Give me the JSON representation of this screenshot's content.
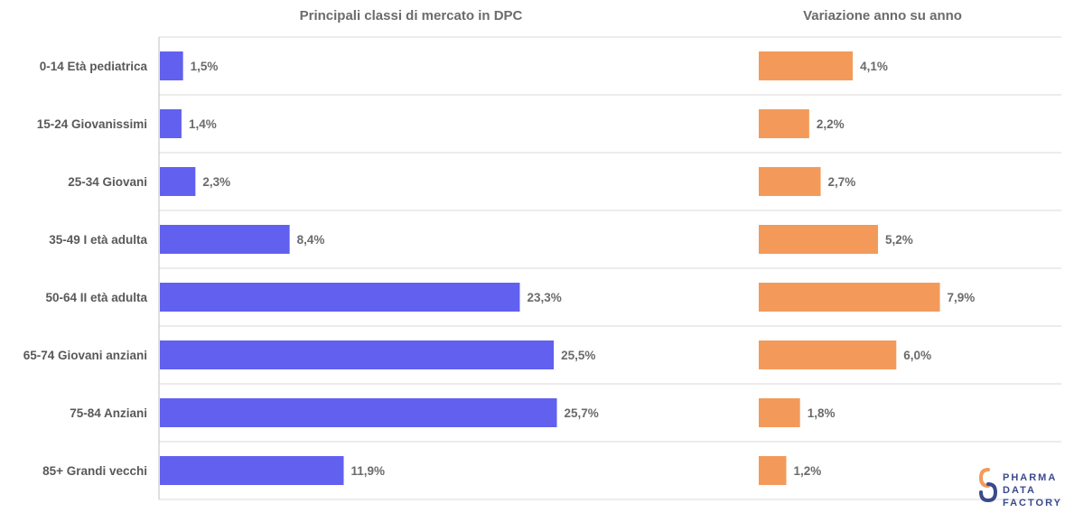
{
  "chart_data": [
    {
      "type": "bar",
      "orientation": "horizontal",
      "title": "Principali classi di mercato in DPC",
      "categories": [
        "0-14 Età pediatrica",
        "15-24 Giovanissimi",
        "25-34 Giovani",
        "35-49 I età adulta",
        "50-64 II età adulta",
        "65-74 Giovani anziani",
        "75-84 Anziani",
        "85+ Grandi vecchi"
      ],
      "values": [
        1.5,
        1.4,
        2.3,
        8.4,
        23.3,
        25.5,
        25.7,
        11.9
      ],
      "labels": [
        "1,5%",
        "1,4%",
        "2,3%",
        "8,4%",
        "23,3%",
        "25,5%",
        "25,7%",
        "11,9%"
      ],
      "xlim": [
        0,
        34.5
      ],
      "color": "#6160ef",
      "grid": true
    },
    {
      "type": "bar",
      "orientation": "horizontal",
      "title": "Variazione anno su anno",
      "categories": [
        "0-14 Età pediatrica",
        "15-24 Giovanissimi",
        "25-34 Giovani",
        "35-49 I età adulta",
        "50-64 II età adulta",
        "65-74 Giovani anziani",
        "75-84 Anziani",
        "85+ Grandi vecchi"
      ],
      "values": [
        4.1,
        2.2,
        2.7,
        5.2,
        7.9,
        6.0,
        1.8,
        1.2
      ],
      "labels": [
        "4,1%",
        "2,2%",
        "2,7%",
        "5,2%",
        "7,9%",
        "6,0%",
        "1,8%",
        "1,2%"
      ],
      "xlim": [
        0,
        13
      ],
      "color": "#f39a5a",
      "grid": true
    }
  ],
  "logo": {
    "lines": [
      "PHARMA",
      "DATA",
      "FACTORY"
    ],
    "colors": {
      "orange": "#f39a5a",
      "navy": "#3a4a8c"
    }
  }
}
